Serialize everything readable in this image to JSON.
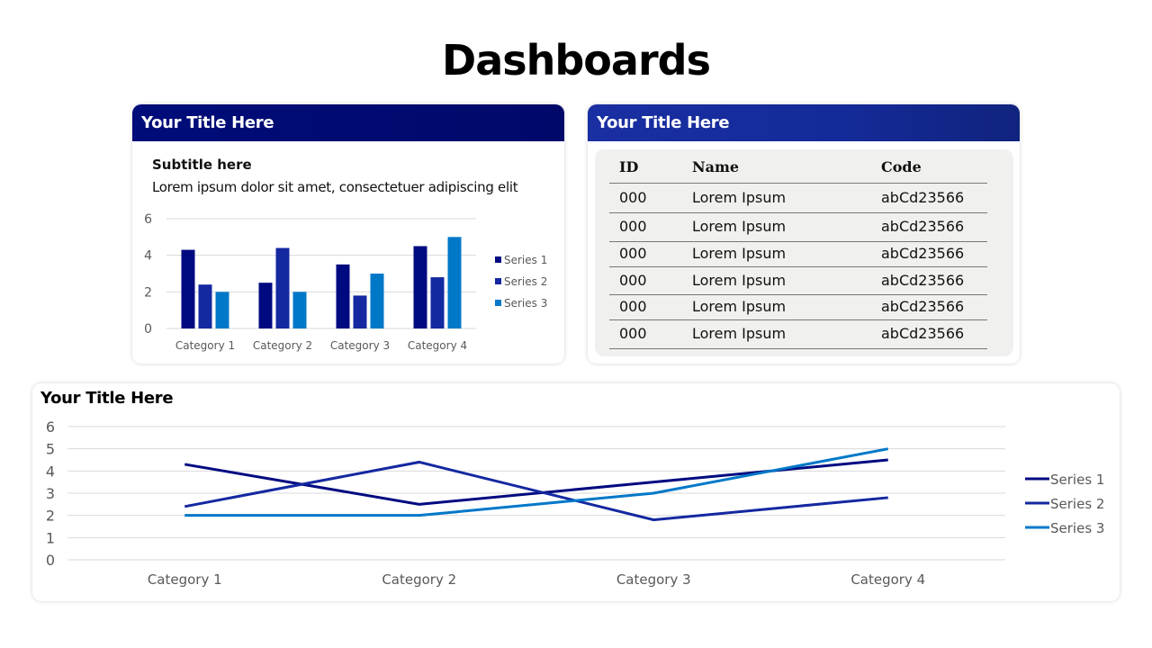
{
  "page": {
    "title": "Dashboards"
  },
  "card1": {
    "title": "Your Title Here",
    "subtitle": "Subtitle here",
    "text": "Lorem ipsum dolor sit amet, consectetuer adipiscing elit"
  },
  "card2": {
    "title": "Your Title Here",
    "table": {
      "headers": [
        "ID",
        "Name",
        "Code"
      ],
      "rows": [
        [
          "000",
          "Lorem Ipsum",
          "abCd23566"
        ],
        [
          "000",
          "Lorem Ipsum",
          "abCd23566"
        ],
        [
          "000",
          "Lorem Ipsum",
          "abCd23566"
        ],
        [
          "000",
          "Lorem Ipsum",
          "abCd23566"
        ],
        [
          "000",
          "Lorem Ipsum",
          "abCd23566"
        ],
        [
          "000",
          "Lorem Ipsum",
          "abCd23566"
        ]
      ]
    }
  },
  "card3": {
    "title": "Your Title Here"
  },
  "chart_data": [
    {
      "type": "bar",
      "categories": [
        "Category 1",
        "Category 2",
        "Category 3",
        "Category 4"
      ],
      "series": [
        {
          "name": "Series 1",
          "values": [
            4.3,
            2.5,
            3.5,
            4.5
          ],
          "color": "#000a80"
        },
        {
          "name": "Series 2",
          "values": [
            2.4,
            4.4,
            1.8,
            2.8
          ],
          "color": "#1428a0"
        },
        {
          "name": "Series 3",
          "values": [
            2,
            2,
            3,
            5
          ],
          "color": "#0078c8"
        }
      ],
      "ylim": [
        0,
        6
      ],
      "yticks": [
        "0",
        "2",
        "4",
        "6"
      ],
      "grid": true,
      "legend": "right"
    },
    {
      "type": "line",
      "categories": [
        "Category 1",
        "Category 2",
        "Category 3",
        "Category 4"
      ],
      "series": [
        {
          "name": "Series 1",
          "values": [
            4.3,
            2.5,
            3.5,
            4.5
          ],
          "color": "#000a80"
        },
        {
          "name": "Series 2",
          "values": [
            2.4,
            4.4,
            1.8,
            2.8
          ],
          "color": "#1428a0"
        },
        {
          "name": "Series 3",
          "values": [
            2,
            2,
            3,
            5
          ],
          "color": "#0078c8"
        }
      ],
      "ylim": [
        0,
        6
      ],
      "yticks": [
        "0",
        "1",
        "2",
        "3",
        "4",
        "5",
        "6"
      ],
      "grid": true,
      "legend": "right"
    }
  ]
}
